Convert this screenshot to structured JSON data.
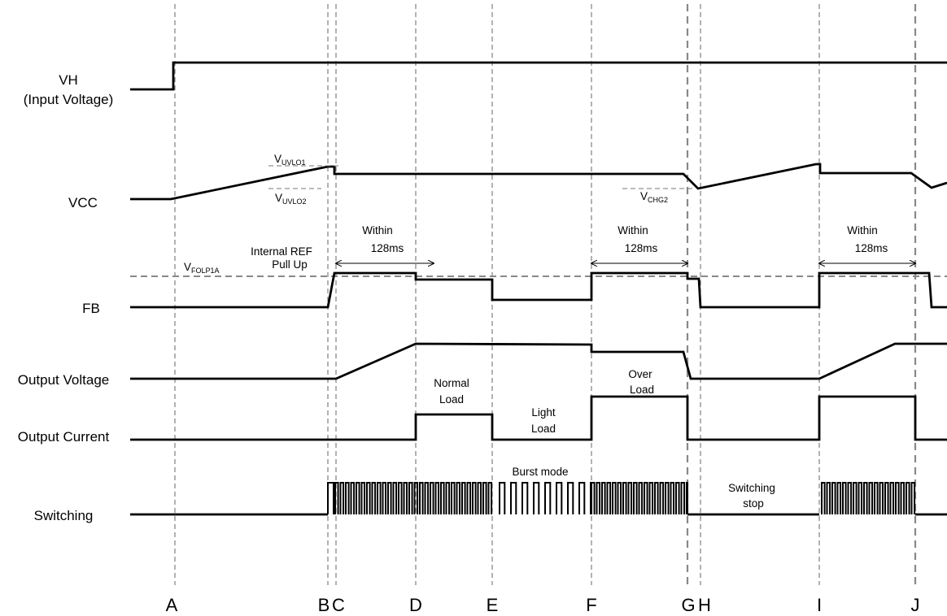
{
  "signals": {
    "vh_line1": "VH",
    "vh_line2": "(Input Voltage)",
    "vcc": "VCC",
    "fb": "FB",
    "output_voltage": "Output Voltage",
    "output_current": "Output Current",
    "switching": "Switching"
  },
  "markers": [
    "A",
    "B",
    "C",
    "D",
    "E",
    "F",
    "G",
    "H",
    "I",
    "J"
  ],
  "annotations": {
    "vuvlo1": {
      "main": "V",
      "sub": "UVLO1"
    },
    "vuvlo2": {
      "main": "V",
      "sub": "UVLO2"
    },
    "vchg2": {
      "main": "V",
      "sub": "CHG2"
    },
    "vfolp1a": {
      "main": "V",
      "sub": "FOLP1A"
    },
    "internal_ref_1": "Internal REF",
    "internal_ref_2": "Pull Up",
    "within_1": "Within",
    "within_2": "128ms",
    "normal_load_1": "Normal",
    "normal_load_2": "Load",
    "light_load_1": "Light",
    "light_load_2": "Load",
    "over_load_1": "Over",
    "over_load_2": "Load",
    "burst_mode": "Burst mode",
    "switching_stop_1": "Switching",
    "switching_stop_2": "stop"
  }
}
